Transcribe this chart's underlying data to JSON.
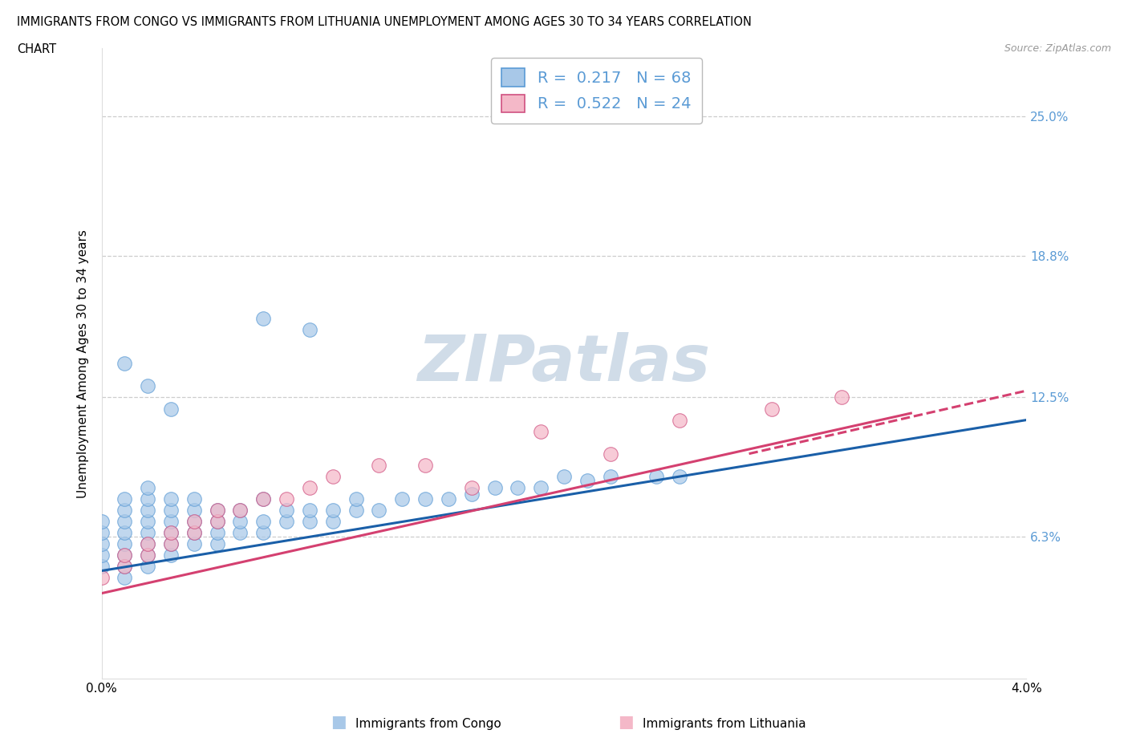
{
  "title_line1": "IMMIGRANTS FROM CONGO VS IMMIGRANTS FROM LITHUANIA UNEMPLOYMENT AMONG AGES 30 TO 34 YEARS CORRELATION",
  "title_line2": "CHART",
  "source_text": "Source: ZipAtlas.com",
  "ylabel": "Unemployment Among Ages 30 to 34 years",
  "xlim": [
    0.0,
    0.04
  ],
  "ylim": [
    0.0,
    0.28
  ],
  "legend_r1": "R =  0.217   N = 68",
  "legend_r2": "R =  0.522   N = 24",
  "congo_color": "#a8c8e8",
  "congo_edge": "#5b9bd5",
  "lithuania_color": "#f4b8c8",
  "lithuania_edge": "#d05080",
  "congo_trend_color": "#1a5fa8",
  "lithuania_trend_color": "#d44070",
  "watermark_color": "#d0dce8",
  "background_color": "#ffffff",
  "grid_color": "#c8c8c8",
  "right_label_color": "#5b9bd5",
  "congo_x": [
    0.0,
    0.0,
    0.0,
    0.0,
    0.0,
    0.001,
    0.001,
    0.001,
    0.001,
    0.001,
    0.001,
    0.001,
    0.001,
    0.002,
    0.002,
    0.002,
    0.002,
    0.002,
    0.002,
    0.002,
    0.002,
    0.003,
    0.003,
    0.003,
    0.003,
    0.003,
    0.003,
    0.004,
    0.004,
    0.004,
    0.004,
    0.004,
    0.005,
    0.005,
    0.005,
    0.005,
    0.006,
    0.006,
    0.006,
    0.007,
    0.007,
    0.007,
    0.008,
    0.008,
    0.009,
    0.009,
    0.01,
    0.01,
    0.011,
    0.011,
    0.012,
    0.013,
    0.014,
    0.015,
    0.016,
    0.017,
    0.018,
    0.019,
    0.02,
    0.021,
    0.022,
    0.024,
    0.025,
    0.001,
    0.002,
    0.003,
    0.007,
    0.009
  ],
  "congo_y": [
    0.05,
    0.055,
    0.06,
    0.065,
    0.07,
    0.045,
    0.05,
    0.055,
    0.06,
    0.065,
    0.07,
    0.075,
    0.08,
    0.05,
    0.055,
    0.06,
    0.065,
    0.07,
    0.075,
    0.08,
    0.085,
    0.055,
    0.06,
    0.065,
    0.07,
    0.075,
    0.08,
    0.06,
    0.065,
    0.07,
    0.075,
    0.08,
    0.06,
    0.065,
    0.07,
    0.075,
    0.065,
    0.07,
    0.075,
    0.065,
    0.07,
    0.08,
    0.07,
    0.075,
    0.07,
    0.075,
    0.07,
    0.075,
    0.075,
    0.08,
    0.075,
    0.08,
    0.08,
    0.08,
    0.082,
    0.085,
    0.085,
    0.085,
    0.09,
    0.088,
    0.09,
    0.09,
    0.09,
    0.14,
    0.13,
    0.12,
    0.16,
    0.155
  ],
  "lithuania_x": [
    0.0,
    0.001,
    0.001,
    0.002,
    0.002,
    0.003,
    0.003,
    0.004,
    0.004,
    0.005,
    0.005,
    0.006,
    0.007,
    0.008,
    0.009,
    0.01,
    0.012,
    0.014,
    0.016,
    0.019,
    0.022,
    0.025,
    0.029,
    0.032
  ],
  "lithuania_y": [
    0.045,
    0.05,
    0.055,
    0.055,
    0.06,
    0.06,
    0.065,
    0.065,
    0.07,
    0.07,
    0.075,
    0.075,
    0.08,
    0.08,
    0.085,
    0.09,
    0.095,
    0.095,
    0.085,
    0.11,
    0.1,
    0.115,
    0.12,
    0.125
  ]
}
